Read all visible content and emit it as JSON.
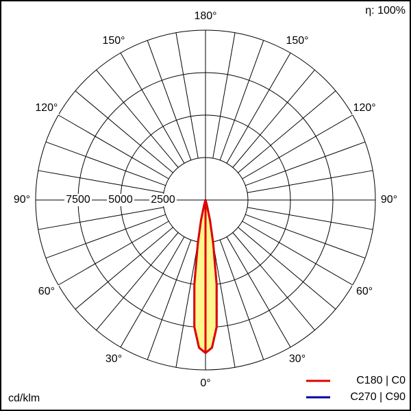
{
  "chart_data": {
    "type": "polar",
    "efficiency": "η: 100%",
    "unit": "cd/klm",
    "rlim": [
      0,
      10000
    ],
    "rticks": [
      2500,
      5000,
      7500
    ],
    "thetaticks": [
      {
        "value": 0,
        "label": "0°"
      },
      {
        "value": 30,
        "label": "30°"
      },
      {
        "value": 60,
        "label": "60°"
      },
      {
        "value": 90,
        "label": "90°"
      },
      {
        "value": 120,
        "label": "120°"
      },
      {
        "value": 150,
        "label": "150°"
      },
      {
        "value": 180,
        "label": "180°"
      }
    ],
    "theta_grid_step": 10,
    "theta": [
      0,
      2.5,
      5,
      7.5,
      10,
      12.5,
      15,
      20
    ],
    "fill": "#fff68f",
    "series": [
      {
        "name": "C180 | C0",
        "color": "#e00000",
        "values": [
          9000,
          8700,
          7500,
          5000,
          2600,
          1200,
          300,
          0
        ]
      },
      {
        "name": "C270 | C90",
        "color": "#0000a0",
        "values": [
          9000,
          8700,
          7500,
          5000,
          2600,
          1200,
          300,
          0
        ]
      }
    ]
  }
}
